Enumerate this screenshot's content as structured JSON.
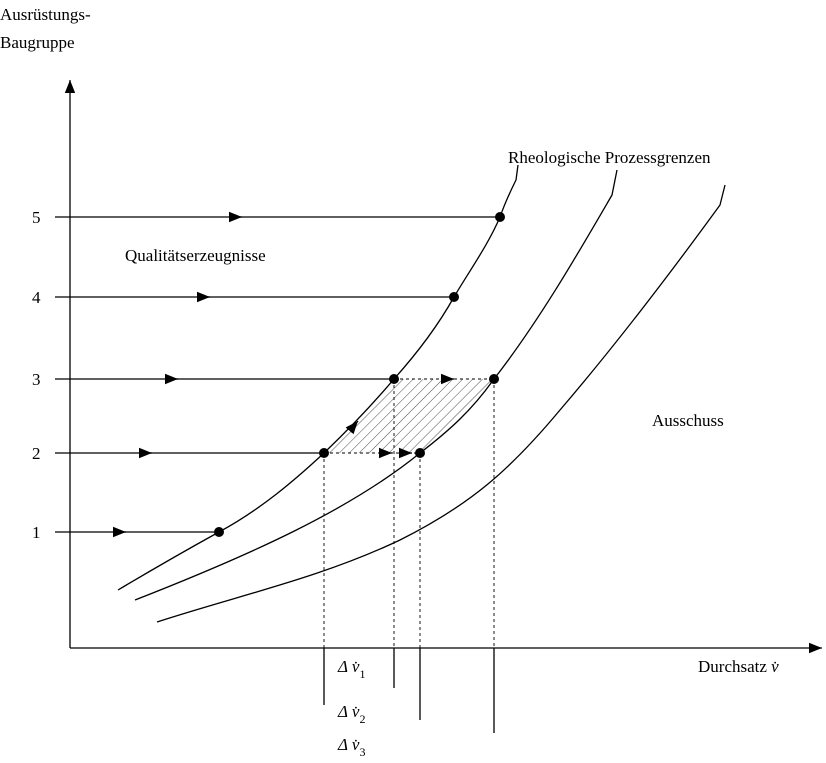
{
  "y_axis": {
    "label_lines": [
      "Ausrüstungs-",
      "Baugruppe"
    ],
    "ticks": [
      "1",
      "2",
      "3",
      "4",
      "5"
    ]
  },
  "x_axis": {
    "label": "Durchsatz",
    "symbol": "v̇"
  },
  "curves_label": "Rheologische Prozessgrenzen",
  "regions": {
    "good": "Qualitätserzeugnisse",
    "bad": "Ausschuss"
  },
  "deltas": [
    {
      "symbol": "Δ v̇",
      "index": "1"
    },
    {
      "symbol": "Δ v̇",
      "index": "2"
    },
    {
      "symbol": "Δ v̇",
      "index": "3"
    }
  ]
}
